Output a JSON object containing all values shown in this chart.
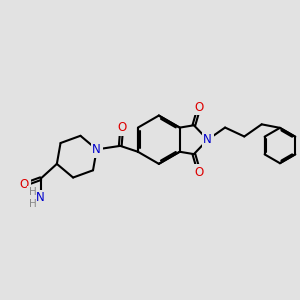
{
  "background_color": "#e2e2e2",
  "bond_color": "#000000",
  "bond_width": 1.5,
  "dbo": 0.055,
  "atom_colors": {
    "N": "#0000cc",
    "O": "#dd0000",
    "H": "#888888",
    "C": "#000000"
  },
  "fs": 8.5,
  "fsh": 7.5,
  "figsize": [
    3.0,
    3.0
  ],
  "dpi": 100,
  "xlim": [
    0,
    10
  ],
  "ylim": [
    0,
    10
  ]
}
